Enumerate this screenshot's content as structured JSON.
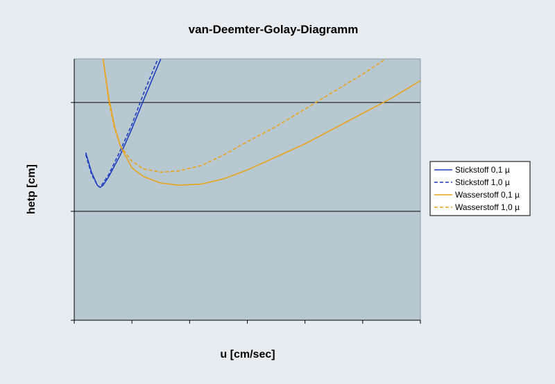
{
  "chart_data": {
    "type": "line",
    "title": "van-Deemter-Golay-Diagramm",
    "xlabel": "u [cm/sec]",
    "ylabel": "hetp [cm]",
    "xlim": [
      0,
      6
    ],
    "ylim": [
      0,
      12
    ],
    "x_ticks": [
      0,
      1,
      2,
      3,
      4,
      5,
      6
    ],
    "y_gridlines": [
      5,
      10
    ],
    "grid": true,
    "legend_position": "right",
    "colors": {
      "plot_background": "#b8c8d0",
      "page_background": "#e6ecf0",
      "gridline": "#000000",
      "stickstoff": "#1f3fbf",
      "wasserstoff": "#e8a41c"
    },
    "series": [
      {
        "name": "Stickstoff 0,1 µ",
        "color": "#1f3fbf",
        "dash": "solid",
        "x": [
          0.2,
          0.3,
          0.4,
          0.45,
          0.5,
          0.6,
          0.8,
          1.0,
          1.2,
          1.5
        ],
        "y": [
          7.7,
          6.8,
          6.2,
          6.1,
          6.2,
          6.6,
          7.6,
          8.8,
          10.1,
          12.0
        ]
      },
      {
        "name": "Stickstoff 1,0 µ",
        "color": "#1f3fbf",
        "dash": "dashed",
        "x": [
          0.2,
          0.3,
          0.4,
          0.45,
          0.5,
          0.6,
          0.8,
          1.0,
          1.2,
          1.45
        ],
        "y": [
          7.6,
          6.7,
          6.2,
          6.1,
          6.3,
          6.7,
          7.8,
          9.0,
          10.4,
          12.0
        ]
      },
      {
        "name": "Wasserstoff 0,1 µ",
        "color": "#e8a41c",
        "dash": "solid",
        "x": [
          0.5,
          0.6,
          0.7,
          0.8,
          1.0,
          1.2,
          1.5,
          1.8,
          2.2,
          2.6,
          3.0,
          3.5,
          4.0,
          4.5,
          5.0,
          5.5,
          6.0
        ],
        "y": [
          12.0,
          10.2,
          8.9,
          8.0,
          7.0,
          6.6,
          6.3,
          6.2,
          6.25,
          6.5,
          6.9,
          7.5,
          8.1,
          8.8,
          9.5,
          10.2,
          11.0
        ]
      },
      {
        "name": "Wasserstoff 1,0 µ",
        "color": "#e8a41c",
        "dash": "dashed",
        "x": [
          0.5,
          0.6,
          0.7,
          0.8,
          1.0,
          1.2,
          1.5,
          1.8,
          2.2,
          2.6,
          3.0,
          3.5,
          4.0,
          4.5,
          5.0,
          5.4
        ],
        "y": [
          12.0,
          10.0,
          8.8,
          8.0,
          7.3,
          6.95,
          6.8,
          6.85,
          7.1,
          7.6,
          8.2,
          8.9,
          9.7,
          10.5,
          11.3,
          12.0
        ]
      }
    ]
  }
}
